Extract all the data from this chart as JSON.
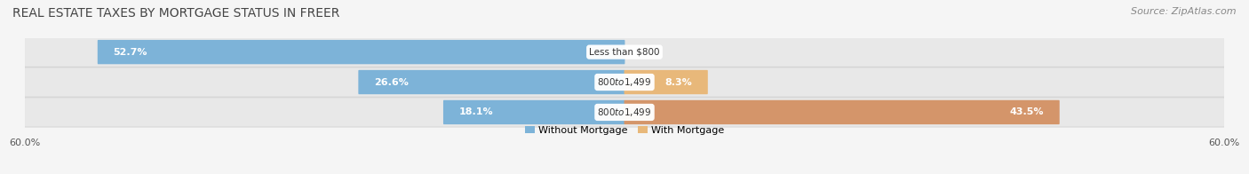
{
  "title": "REAL ESTATE TAXES BY MORTGAGE STATUS IN FREER",
  "source": "Source: ZipAtlas.com",
  "rows": [
    {
      "label": "Less than $800",
      "without_mortgage_pct": 52.7,
      "with_mortgage_pct": 0.0
    },
    {
      "label": "$800 to $1,499",
      "without_mortgage_pct": 26.6,
      "with_mortgage_pct": 8.3
    },
    {
      "label": "$800 to $1,499",
      "without_mortgage_pct": 18.1,
      "with_mortgage_pct": 43.5
    }
  ],
  "max_value": 60.0,
  "color_without": "#7db3d8",
  "color_with": "#e8b87a",
  "color_with_row2": "#d4956a",
  "label_without": "Without Mortgage",
  "label_with": "With Mortgage",
  "bg_row": "#e8e8e8",
  "bg_main": "#f5f5f5",
  "title_fontsize": 10,
  "source_fontsize": 8,
  "bar_label_fontsize": 8,
  "axis_label_fontsize": 8,
  "category_fontsize": 7.5
}
